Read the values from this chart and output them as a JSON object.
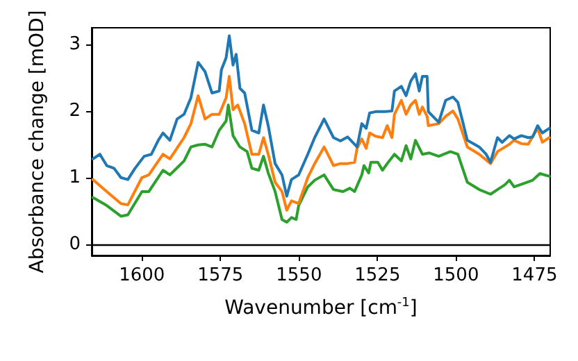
{
  "chart_data": {
    "type": "line",
    "xlabel": "Wavenumber [cm$^{-1}$]",
    "ylabel": "Absorbance change [mOD]",
    "xlim": [
      1616,
      1470
    ],
    "xticks": [
      1600,
      1575,
      1550,
      1525,
      1500,
      1475
    ],
    "ylim": [
      -0.17,
      3.25
    ],
    "yticks": [
      0,
      1,
      2,
      3
    ],
    "ref_lines": [
      {
        "axis": "y",
        "value": 0,
        "color": "#000000"
      }
    ],
    "series": [
      {
        "color": "#1f77b4",
        "x": [
          1615.6,
          1613.4,
          1611.2,
          1608.9,
          1606.7,
          1604.5,
          1602.2,
          1599.3,
          1597,
          1594.8,
          1593.3,
          1591.1,
          1588.8,
          1586.6,
          1584.4,
          1582.1,
          1579.9,
          1577.7,
          1575.4,
          1574.7,
          1573.2,
          1572.2,
          1571,
          1570,
          1568.8,
          1567.3,
          1565,
          1562.8,
          1561.3,
          1559.8,
          1557.6,
          1555.4,
          1553.9,
          1552.4,
          1550.1,
          1547.2,
          1545,
          1542,
          1539,
          1536.8,
          1534.5,
          1531.5,
          1530,
          1528.6,
          1527.5,
          1525.6,
          1522.6,
          1520.4,
          1519.6,
          1517.4,
          1515.9,
          1514.4,
          1512.9,
          1511.7,
          1510.7,
          1509.2,
          1508.8,
          1505.5,
          1503.3,
          1501,
          1499.4,
          1496.4,
          1492.6,
          1490.4,
          1489,
          1486.8,
          1485.3,
          1483,
          1481.5,
          1479.2,
          1477,
          1475.6,
          1474,
          1472.5,
          1470.3
        ],
        "values": [
          1.28,
          1.35,
          1.18,
          1.14,
          1.0,
          0.97,
          1.14,
          1.32,
          1.35,
          1.56,
          1.67,
          1.56,
          1.88,
          1.95,
          2.2,
          2.73,
          2.59,
          2.27,
          2.3,
          2.62,
          2.8,
          3.13,
          2.69,
          2.85,
          2.34,
          2.27,
          1.71,
          1.67,
          2.09,
          1.78,
          1.21,
          1.04,
          0.72,
          0.97,
          1.04,
          1.35,
          1.6,
          1.88,
          1.6,
          1.55,
          1.61,
          1.46,
          1.81,
          1.74,
          1.97,
          1.99,
          1.99,
          2.0,
          2.3,
          2.37,
          2.23,
          2.45,
          2.56,
          2.3,
          2.52,
          2.52,
          1.99,
          1.83,
          2.16,
          2.21,
          2.13,
          1.56,
          1.46,
          1.35,
          1.23,
          1.6,
          1.53,
          1.63,
          1.58,
          1.63,
          1.6,
          1.61,
          1.78,
          1.67,
          1.74
        ]
      },
      {
        "color": "#ff7f0e",
        "x": [
          1615.6,
          1611.2,
          1606.7,
          1604.5,
          1600,
          1597.8,
          1593.3,
          1591.1,
          1586.6,
          1584.4,
          1582.1,
          1579.9,
          1577.7,
          1575.4,
          1573.2,
          1572.2,
          1571,
          1569.5,
          1567.3,
          1565,
          1562.8,
          1561.3,
          1559.8,
          1557.6,
          1555.4,
          1553.9,
          1552.4,
          1550.1,
          1547.2,
          1545,
          1542,
          1539,
          1536.8,
          1534.5,
          1532.3,
          1531.5,
          1530,
          1528.6,
          1527.5,
          1525.6,
          1523.4,
          1521.9,
          1520.4,
          1519.6,
          1517.4,
          1515.9,
          1514.4,
          1512.9,
          1511.7,
          1510.7,
          1509.2,
          1508.8,
          1505.5,
          1503.3,
          1501,
          1499.4,
          1496.4,
          1492.6,
          1489,
          1486.8,
          1483,
          1481.5,
          1479.2,
          1477,
          1474,
          1472.5,
          1470.3
        ],
        "values": [
          0.97,
          0.79,
          0.61,
          0.59,
          1.0,
          1.04,
          1.35,
          1.28,
          1.6,
          1.81,
          2.23,
          1.88,
          1.95,
          1.95,
          2.2,
          2.52,
          2.02,
          2.09,
          1.81,
          1.35,
          1.35,
          1.6,
          1.35,
          0.93,
          0.79,
          0.51,
          0.65,
          0.61,
          1.0,
          1.21,
          1.46,
          1.18,
          1.21,
          1.21,
          1.23,
          1.44,
          1.58,
          1.44,
          1.67,
          1.62,
          1.6,
          1.78,
          1.6,
          1.95,
          2.16,
          1.95,
          2.09,
          2.16,
          1.95,
          2.06,
          1.92,
          1.78,
          1.81,
          1.92,
          2.0,
          1.88,
          1.46,
          1.35,
          1.21,
          1.39,
          1.5,
          1.56,
          1.51,
          1.5,
          1.74,
          1.53,
          1.6
        ]
      },
      {
        "color": "#2ca02c",
        "x": [
          1615.6,
          1611.2,
          1606.7,
          1604.5,
          1600,
          1597.8,
          1593.3,
          1591.1,
          1586.6,
          1584.4,
          1582.1,
          1579.9,
          1577.7,
          1575.4,
          1573.2,
          1572.5,
          1571,
          1568.8,
          1566.5,
          1565,
          1562.8,
          1561.3,
          1559.8,
          1557.6,
          1555.4,
          1553.9,
          1552.4,
          1550.9,
          1550.1,
          1547.2,
          1545,
          1542,
          1539,
          1536,
          1533.8,
          1532.3,
          1530,
          1529.3,
          1527.8,
          1527.1,
          1524.9,
          1523.4,
          1521.9,
          1519.6,
          1517.4,
          1515.9,
          1514.4,
          1512.9,
          1510.7,
          1508.5,
          1505.5,
          1501.8,
          1499.4,
          1496.4,
          1492.6,
          1489,
          1486.8,
          1484.5,
          1483,
          1481.5,
          1478.5,
          1475.6,
          1473.3,
          1470.3
        ],
        "values": [
          0.7,
          0.58,
          0.42,
          0.44,
          0.79,
          0.79,
          1.11,
          1.04,
          1.25,
          1.46,
          1.49,
          1.5,
          1.46,
          1.71,
          1.85,
          2.09,
          1.63,
          1.46,
          1.39,
          1.14,
          1.11,
          1.32,
          1.07,
          0.79,
          0.37,
          0.33,
          0.4,
          0.37,
          0.58,
          0.86,
          0.96,
          1.04,
          0.82,
          0.79,
          0.84,
          0.79,
          1.04,
          1.18,
          1.07,
          1.23,
          1.23,
          1.11,
          1.21,
          1.35,
          1.25,
          1.48,
          1.28,
          1.56,
          1.35,
          1.37,
          1.32,
          1.39,
          1.35,
          0.93,
          0.82,
          0.75,
          0.82,
          0.89,
          0.96,
          0.86,
          0.91,
          0.96,
          1.06,
          1.02
        ]
      }
    ]
  }
}
